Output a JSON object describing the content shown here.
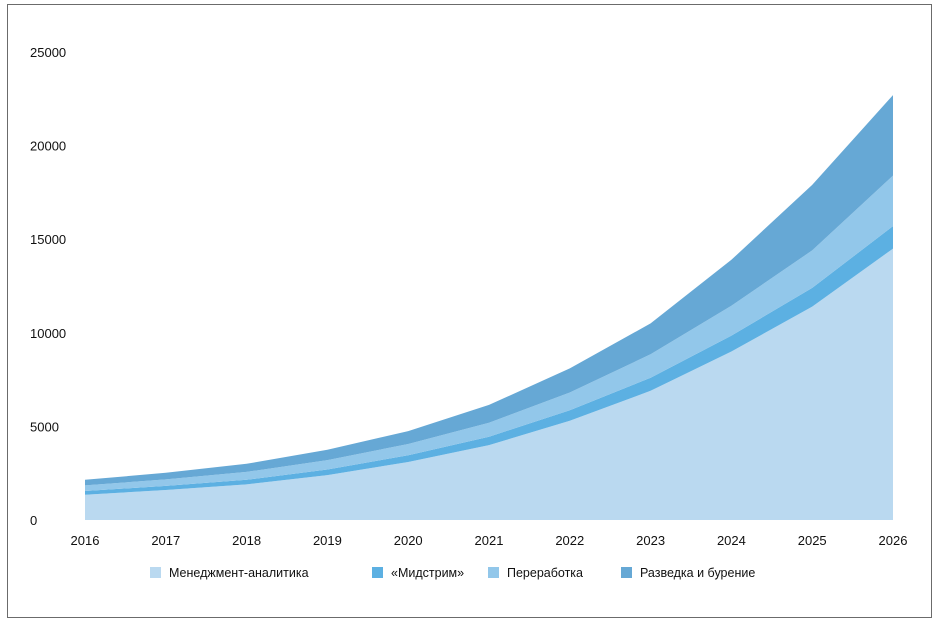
{
  "chart_data": {
    "type": "area",
    "stacked": true,
    "x": [
      2016,
      2017,
      2018,
      2019,
      2020,
      2021,
      2022,
      2023,
      2024,
      2025,
      2026
    ],
    "ylim": [
      0,
      25000
    ],
    "yticks": [
      0,
      5000,
      10000,
      15000,
      20000,
      25000
    ],
    "grid": false,
    "legend_position": "bottom",
    "series": [
      {
        "name": "Менеджмент-аналитика",
        "color": "#bad9f0",
        "values": [
          1350,
          1600,
          1900,
          2400,
          3100,
          4000,
          5300,
          6900,
          9000,
          11400,
          14500
        ]
      },
      {
        "name": "«Мидстрим»",
        "color": "#5cb0e2",
        "values": [
          200,
          220,
          250,
          300,
          360,
          450,
          560,
          700,
          850,
          1000,
          1200
        ]
      },
      {
        "name": "Переработка",
        "color": "#92c7ea",
        "values": [
          300,
          350,
          420,
          500,
          600,
          750,
          950,
          1250,
          1600,
          2000,
          2700
        ]
      },
      {
        "name": "Разведка и бурение",
        "color": "#66a8d5",
        "values": [
          300,
          350,
          430,
          550,
          690,
          950,
          1290,
          1650,
          2450,
          3500,
          4300
        ]
      }
    ]
  }
}
